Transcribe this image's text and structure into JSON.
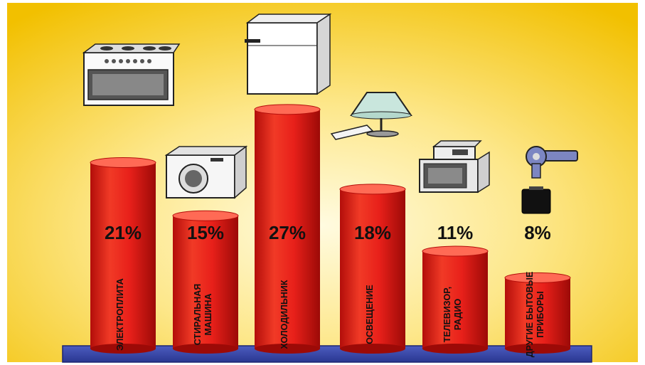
{
  "chart_data": {
    "type": "bar",
    "categories": [
      [
        "ЭЛЕКТРОПЛИТА"
      ],
      [
        "СТИРАЛЬНАЯ",
        "МАШИНА"
      ],
      [
        "ХОЛОДИЛЬНИК"
      ],
      [
        "ОСВЕЩЕНИЕ"
      ],
      [
        "ТЕЛЕВИЗОР,",
        "РАДИО"
      ],
      [
        "ДРУГИЕ БЫТОВЫЕ",
        "ПРИБОРЫ"
      ]
    ],
    "values": [
      21,
      15,
      27,
      18,
      11,
      8
    ],
    "value_labels": [
      "21%",
      "15%",
      "27%",
      "18%",
      "11%",
      "8%"
    ],
    "icons": [
      "electric-stove-icon",
      "washing-machine-icon",
      "refrigerator-icon",
      "lamp-icon",
      "tv-radio-icon",
      "hairdryer-battery-icon"
    ],
    "unit": "%",
    "colors": {
      "bar": "#e8201a",
      "bar_dark": "#a80d0a",
      "bar_light": "#ff6a55",
      "platform": "#3a4aa8",
      "background_center": "#fff6c8",
      "background_edge": "#f3c400"
    }
  }
}
